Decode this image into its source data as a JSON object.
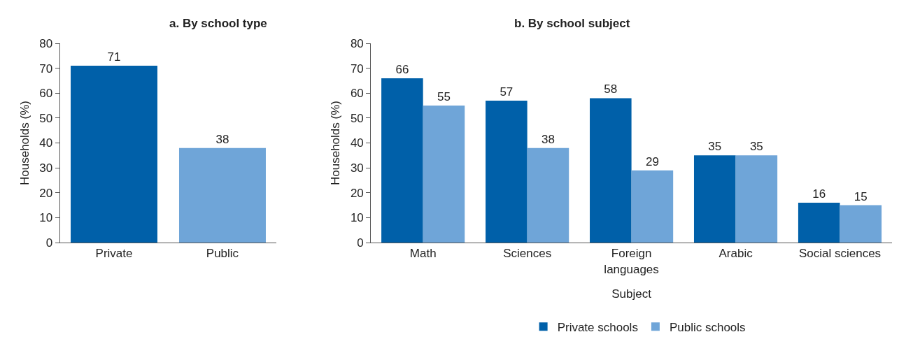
{
  "chart_data": [
    {
      "type": "bar",
      "title": "a. By school type",
      "ylabel": "Households (%)",
      "categories": [
        "Private",
        "Public"
      ],
      "values": [
        71,
        38
      ],
      "colors": [
        "#0060a9",
        "#6fa5d8"
      ],
      "ylim": [
        0,
        80
      ],
      "yticks": [
        0,
        10,
        20,
        30,
        40,
        50,
        60,
        70,
        80
      ],
      "data_labels": true,
      "grid": false,
      "legend": false
    },
    {
      "type": "bar",
      "title": "b. By school subject",
      "ylabel": "Households (%)",
      "xlabel": "Subject",
      "categories": [
        "Math",
        "Sciences",
        "Foreign\nlanguages",
        "Arabic",
        "Social sciences"
      ],
      "series": [
        {
          "name": "Private schools",
          "color": "#0060a9",
          "values": [
            66,
            57,
            58,
            35,
            16
          ]
        },
        {
          "name": "Public schools",
          "color": "#6fa5d8",
          "values": [
            55,
            38,
            29,
            35,
            15
          ]
        }
      ],
      "ylim": [
        0,
        80
      ],
      "yticks": [
        0,
        10,
        20,
        30,
        40,
        50,
        60,
        70,
        80
      ],
      "data_labels": true,
      "grid": false,
      "legend": "bottom"
    }
  ]
}
